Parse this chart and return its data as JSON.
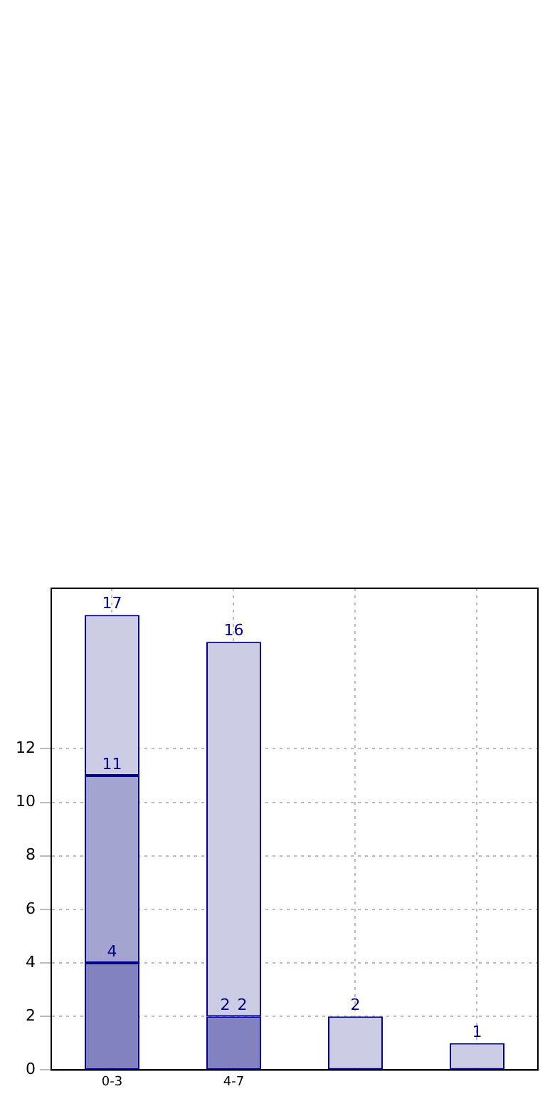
{
  "chart_data": {
    "type": "bar",
    "categories": [
      "0-3",
      "4-7",
      null,
      null
    ],
    "stacked": true,
    "series": [
      {
        "color": "#8282c0",
        "values": [
          4,
          2,
          null,
          null
        ]
      },
      {
        "color": "#a3a5d0",
        "values": [
          7,
          0,
          null,
          null
        ]
      },
      {
        "color": "#ccccE5",
        "values": [
          6,
          14,
          2,
          1
        ]
      }
    ],
    "totals": [
      "17",
      "16",
      "2",
      "1"
    ],
    "annotations": [
      {
        "text": "4",
        "x": "0-3",
        "y": 4
      },
      {
        "text": "11",
        "x": "0-3",
        "y": 11
      },
      {
        "text": "2",
        "x": "4-7",
        "y": 2
      },
      {
        "text": "2",
        "x": "4-7",
        "y": 2
      }
    ],
    "ylim": [
      0,
      18
    ],
    "yticks": [
      0,
      2,
      4,
      6,
      8,
      10,
      12
    ],
    "grid": true
  }
}
